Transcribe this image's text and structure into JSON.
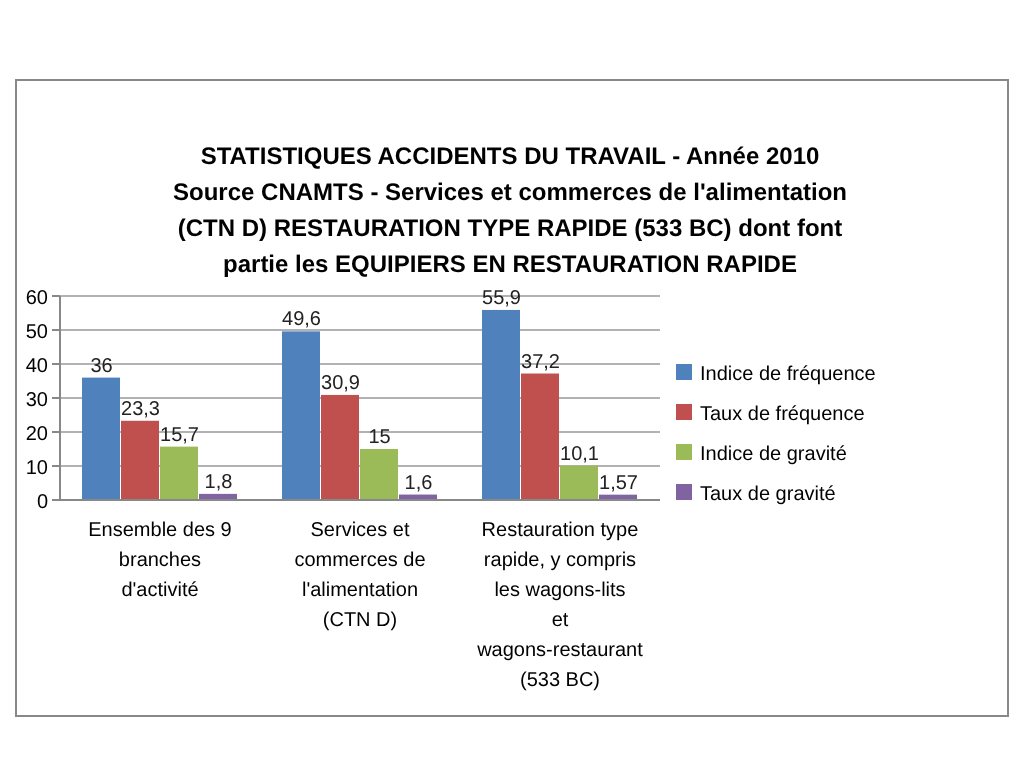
{
  "chart_data": {
    "type": "bar",
    "title": "STATISTIQUES ACCIDENTS DU TRAVAIL - Année 2010\nSource CNAMTS -  Services et commerces de l'alimentation\n(CTN D) RESTAURATION TYPE RAPIDE (533 BC) dont font\npartie les EQUIPIERS EN RESTAURATION RAPIDE",
    "categories": [
      "Ensemble des 9 branches d'activité",
      "Services et commerces de l'alimentation (CTN D)",
      "Restauration type rapide, y compris les wagons-lits et wagons-restaurant (533 BC)"
    ],
    "series": [
      {
        "name": "Indice de fréquence",
        "color": "#4f81bd",
        "values": [
          36,
          49.6,
          55.9
        ],
        "value_labels": [
          "36",
          "49,6",
          "55,9"
        ]
      },
      {
        "name": "Taux de fréquence",
        "color": "#c0504d",
        "values": [
          23.3,
          30.9,
          37.2
        ],
        "value_labels": [
          "23,3",
          "30,9",
          "37,2"
        ]
      },
      {
        "name": "Indice de gravité",
        "color": "#9bbb59",
        "values": [
          15.7,
          15,
          10.1
        ],
        "value_labels": [
          "15,7",
          "15",
          "10,1"
        ]
      },
      {
        "name": "Taux de gravité",
        "color": "#8064a2",
        "values": [
          1.8,
          1.6,
          1.57
        ],
        "value_labels": [
          "1,8",
          "1,6",
          "1,57"
        ]
      }
    ],
    "ylim": [
      0,
      60
    ],
    "yticks": [
      0,
      10,
      20,
      30,
      40,
      50,
      60
    ],
    "grid": "y",
    "legend": "right"
  }
}
